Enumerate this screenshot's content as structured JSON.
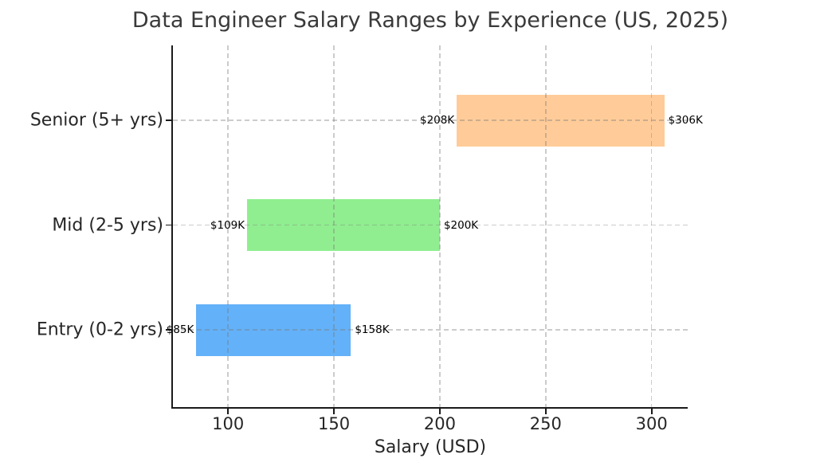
{
  "chart_data": {
    "type": "bar",
    "subtype": "range-bar",
    "orientation": "horizontal",
    "title": "Data Engineer Salary Ranges by Experience (US, 2025)",
    "xlabel": "Salary (USD)",
    "ylabel": "",
    "categories": [
      "Senior (5+ yrs)",
      "Mid (2-5 yrs)",
      "Entry (0-2 yrs)"
    ],
    "bars": [
      {
        "category": "Senior (5+ yrs)",
        "min": 208,
        "max": 306,
        "min_label": "$208K",
        "max_label": "$306K",
        "color": "#FFCC99"
      },
      {
        "category": "Mid (2-5 yrs)",
        "min": 109,
        "max": 200,
        "min_label": "$109K",
        "max_label": "$200K",
        "color": "#90EE90"
      },
      {
        "category": "Entry (0-2 yrs)",
        "min": 85,
        "max": 158,
        "min_label": "$85K",
        "max_label": "$158K",
        "color": "#63B1F8"
      }
    ],
    "xticks": [
      100,
      150,
      200,
      250,
      300
    ],
    "xlim": [
      73.95,
      317.05
    ],
    "grid": true,
    "grid_style": "dashed",
    "legend_position": "none",
    "colors": {
      "background": "#ffffff",
      "spine": "#1a1a1a",
      "title_text": "#3a3a3a",
      "tick_text": "#262626",
      "annotation_text": "#000000"
    }
  }
}
